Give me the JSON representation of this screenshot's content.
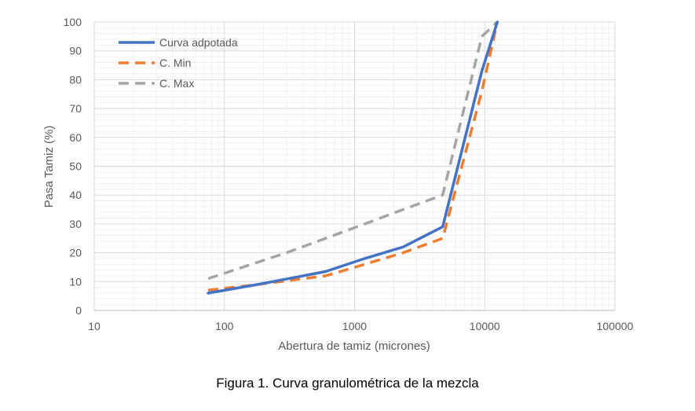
{
  "caption": "Figura 1. Curva granulométrica de la mezcla",
  "chart_data": {
    "type": "line",
    "x_scale": "log",
    "xlabel": "Abertura de tamiz (micrones)",
    "ylabel": "Pasa Tamiz (%)",
    "xlim": [
      10,
      100000
    ],
    "ylim": [
      0,
      100
    ],
    "x_ticks": [
      10,
      100,
      1000,
      10000,
      100000
    ],
    "x_tick_labels": [
      "10",
      "100",
      "1000",
      "10000",
      "100000"
    ],
    "y_ticks": [
      0,
      10,
      20,
      30,
      40,
      50,
      60,
      70,
      80,
      90,
      100
    ],
    "y_tick_labels": [
      "0",
      "10",
      "20",
      "30",
      "40",
      "50",
      "60",
      "70",
      "80",
      "90",
      "100"
    ],
    "grid": true,
    "minor_grid": true,
    "legend_position": "top-left",
    "series": [
      {
        "name": "Curva adpotada",
        "color": "#4472C4",
        "style": "solid",
        "points": [
          [
            75,
            6
          ],
          [
            180,
            9
          ],
          [
            600,
            13.5
          ],
          [
            1200,
            18
          ],
          [
            2360,
            22
          ],
          [
            4750,
            29
          ],
          [
            9500,
            83
          ],
          [
            12500,
            100
          ]
        ]
      },
      {
        "name": "C. Min",
        "color": "#ED7D31",
        "style": "dashed",
        "points": [
          [
            75,
            7
          ],
          [
            180,
            9
          ],
          [
            600,
            12
          ],
          [
            1200,
            16
          ],
          [
            2360,
            20
          ],
          [
            4750,
            25
          ],
          [
            9500,
            76
          ],
          [
            12500,
            100
          ]
        ]
      },
      {
        "name": "C. Max",
        "color": "#A5A5A5",
        "style": "dashed",
        "points": [
          [
            75,
            11
          ],
          [
            300,
            20
          ],
          [
            600,
            25
          ],
          [
            1200,
            30
          ],
          [
            2360,
            35
          ],
          [
            4750,
            40
          ],
          [
            9500,
            95
          ],
          [
            12500,
            100
          ]
        ]
      }
    ]
  }
}
